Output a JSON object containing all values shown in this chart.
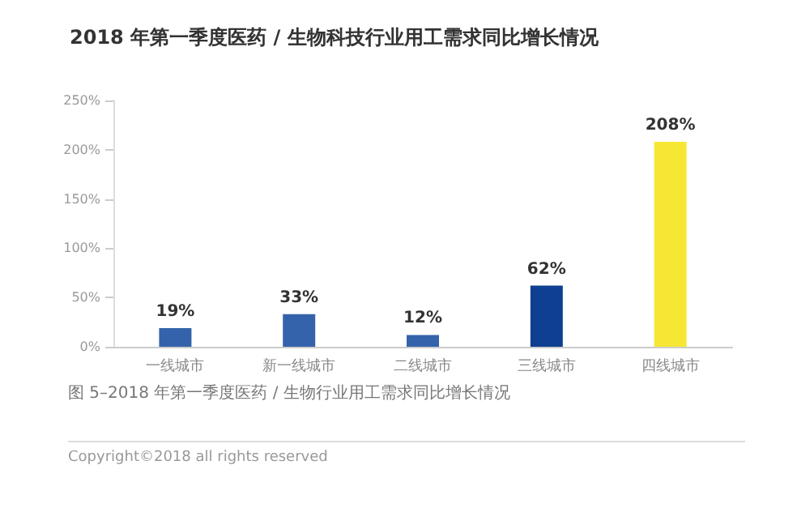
{
  "chart_data": {
    "type": "bar",
    "title": "2018 年第一季度医药 / 生物科技行业用工需求同比增长情况",
    "categories": [
      "一线城市",
      "新一线城市",
      "二线城市",
      "三线城市",
      "四线城市"
    ],
    "values": [
      19,
      33,
      12,
      62,
      208
    ],
    "colors": [
      "#3563ab",
      "#3563ab",
      "#3563ab",
      "#0e3f90",
      "#f6e734"
    ],
    "ylim": [
      0,
      250
    ],
    "yticks": [
      {
        "value": 0,
        "label": "0%"
      },
      {
        "value": 50,
        "label": "50%"
      },
      {
        "value": 100,
        "label": "100%"
      },
      {
        "value": 150,
        "label": "150%"
      },
      {
        "value": 200,
        "label": "200%"
      },
      {
        "value": 250,
        "label": "250%"
      }
    ],
    "value_labels": [
      "19%",
      "33%",
      "12%",
      "62%",
      "208%"
    ],
    "grid": false,
    "annotations": [
      "图 5–2018 年第一季度医药 / 生物行业用工需求同比增长情况",
      "Copyright©2018 all rights reserved"
    ]
  }
}
